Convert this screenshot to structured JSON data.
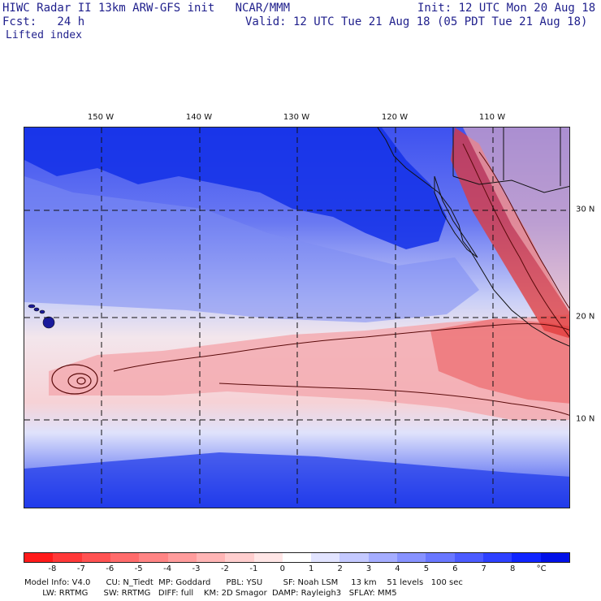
{
  "header": {
    "title_line1": "HIWC Radar II 13km ARW-GFS init   NCAR/MMM",
    "init_line": "Init: 12 UTC Mon 20 Aug 18",
    "fcst_line": "Fcst:   24 h",
    "valid_line": "Valid: 12 UTC Tue 21 Aug 18 (05 PDT Tue 21 Aug 18)",
    "field_name": "Lifted index"
  },
  "map": {
    "lon_labels": [
      "150 W",
      "140 W",
      "130 W",
      "120 W",
      "110 W"
    ],
    "lat_labels": [
      "30 N",
      "20 N",
      "10 N"
    ],
    "colors": {
      "deep_blue": "#0019e6",
      "mid_blue": "#5a6bf0",
      "light_blue": "#b6c0f5",
      "pale": "#f4e8ee",
      "pink": "#f5b4b8",
      "red": "#ec6a6c",
      "deep_red": "#e23838",
      "grid": "#111111",
      "coast": "#111111"
    }
  },
  "colorbar": {
    "labels": [
      "-8",
      "-7",
      "-6",
      "-5",
      "-4",
      "-3",
      "-2",
      "-1",
      "0",
      "1",
      "2",
      "3",
      "4",
      "5",
      "6",
      "7",
      "8",
      "°C"
    ],
    "colors": [
      "#ff1a1a",
      "#ff3838",
      "#ff5252",
      "#ff6b6b",
      "#ff8484",
      "#ff9c9c",
      "#ffb5b5",
      "#ffcece",
      "#ffe6e6",
      "#ffffff",
      "#e2e4ff",
      "#c4c9ff",
      "#a5adff",
      "#8792ff",
      "#6977ff",
      "#4b5bff",
      "#2d40ff",
      "#0f24ff",
      "#0010e8"
    ]
  },
  "footer": {
    "line1": "Model Info: V4.0      CU: N_Tiedt  MP: Goddard      PBL: YSU        SF: Noah LSM     13 km    51 levels   100 sec",
    "line2": "       LW: RRTMG      SW: RRTMG   DIFF: full    KM: 2D Smagor  DAMP: Rayleigh3   SFLAY: MM5"
  }
}
